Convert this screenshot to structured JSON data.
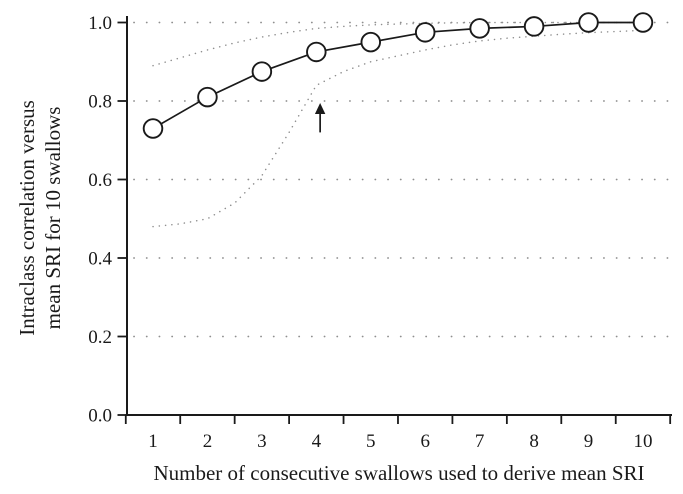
{
  "chart_data": {
    "type": "line",
    "title": "",
    "xlabel": "Number of consecutive swallows used to derive mean SRI",
    "ylabel_lines": [
      "Intraclass correlation versus",
      "mean SRI for 10 swallows"
    ],
    "xlim": [
      0.5,
      10.5
    ],
    "ylim": [
      0.0,
      1.0
    ],
    "grid": "dotted horizontal gridlines at every y tick",
    "legend": "none",
    "x_tick_labels": [
      "1",
      "2",
      "3",
      "4",
      "5",
      "6",
      "7",
      "8",
      "9",
      "10"
    ],
    "x_tick_values": [
      1,
      2,
      3,
      4,
      5,
      6,
      7,
      8,
      9,
      10
    ],
    "x_boundary_ticks": [
      0.5,
      1.5,
      2.5,
      3.5,
      4.5,
      5.5,
      6.5,
      7.5,
      8.5,
      9.5,
      10.5
    ],
    "y_tick_labels": [
      "0.0",
      "0.2",
      "0.4",
      "0.6",
      "0.8",
      "1.0"
    ],
    "y_tick_values": [
      0.0,
      0.2,
      0.4,
      0.6,
      0.8,
      1.0
    ],
    "series": [
      {
        "name": "intraclass-correlation",
        "style": "solid line with open circle markers",
        "color": "#1a1a1a",
        "x": [
          1,
          2,
          3,
          4,
          5,
          6,
          7,
          8,
          9,
          10
        ],
        "values": [
          0.73,
          0.81,
          0.875,
          0.925,
          0.95,
          0.975,
          0.985,
          0.99,
          1.0,
          1.0
        ]
      },
      {
        "name": "upper-dotted-band",
        "style": "dotted",
        "color": "#8f8f8f",
        "x": [
          1,
          1.5,
          2,
          2.5,
          3,
          3.5,
          4,
          4.5,
          5,
          5.5,
          6,
          6.5,
          7,
          7.5,
          8,
          8.5,
          9,
          9.5,
          10
        ],
        "values": [
          0.89,
          0.91,
          0.93,
          0.948,
          0.963,
          0.975,
          0.985,
          0.99,
          0.994,
          0.996,
          0.998,
          0.999,
          1.0,
          1.0,
          1.0,
          1.0,
          1.0,
          1.0,
          1.0
        ]
      },
      {
        "name": "lower-dotted-band",
        "style": "dotted",
        "color": "#8f8f8f",
        "x": [
          1,
          1.5,
          2,
          2.5,
          3,
          3.5,
          4,
          4.5,
          5,
          5.5,
          6,
          6.5,
          7,
          7.5,
          8,
          8.5,
          9,
          9.5,
          10
        ],
        "values": [
          0.48,
          0.487,
          0.5,
          0.54,
          0.61,
          0.72,
          0.84,
          0.875,
          0.9,
          0.915,
          0.93,
          0.943,
          0.953,
          0.96,
          0.965,
          0.97,
          0.974,
          0.977,
          0.98
        ]
      }
    ],
    "annotation": {
      "type": "up-arrow",
      "x": 4.07,
      "y_from": 0.72,
      "y_to": 0.795
    },
    "colors": {
      "line": "#1a1a1a",
      "marker_fill": "#ffffff",
      "band_and_grid": "#8f8f8f",
      "background": "#ffffff"
    }
  }
}
